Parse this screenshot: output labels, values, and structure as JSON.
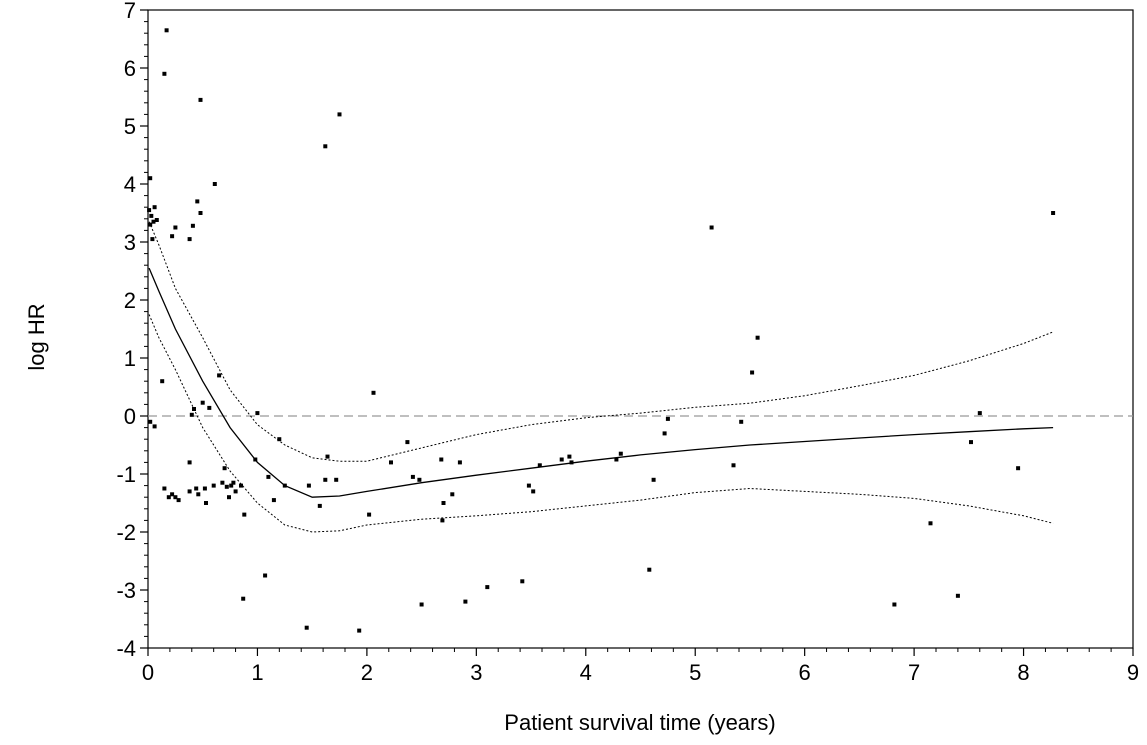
{
  "chart_data": {
    "type": "scatter",
    "title": "",
    "xlabel": "Patient survival time (years)",
    "ylabel": "log HR",
    "xlim": [
      0,
      9
    ],
    "ylim": [
      -4,
      7
    ],
    "xticks": [
      "0",
      "1",
      "2",
      "3",
      "4",
      "5",
      "6",
      "7",
      "8",
      "9"
    ],
    "yticks": [
      "-4",
      "-3",
      "-2",
      "-1",
      "0",
      "1",
      "2",
      "3",
      "4",
      "5",
      "6",
      "7"
    ],
    "grid": false,
    "reference_line": {
      "y": 0,
      "style": "dashed",
      "color": "#999999"
    },
    "points": [
      [
        0.02,
        4.1
      ],
      [
        0.01,
        3.55
      ],
      [
        0.03,
        3.45
      ],
      [
        0.02,
        3.3
      ],
      [
        0.05,
        3.35
      ],
      [
        0.06,
        3.6
      ],
      [
        0.08,
        3.38
      ],
      [
        0.04,
        3.05
      ],
      [
        0.17,
        6.65
      ],
      [
        0.15,
        5.9
      ],
      [
        0.22,
        3.1
      ],
      [
        0.25,
        3.25
      ],
      [
        0.38,
        3.05
      ],
      [
        0.41,
        3.28
      ],
      [
        0.45,
        3.7
      ],
      [
        0.48,
        3.5
      ],
      [
        0.48,
        5.45
      ],
      [
        0.61,
        4.0
      ],
      [
        1.62,
        4.65
      ],
      [
        1.75,
        5.2
      ],
      [
        5.15,
        3.25
      ],
      [
        8.27,
        3.5
      ],
      [
        0.02,
        -0.1
      ],
      [
        0.06,
        -0.18
      ],
      [
        0.13,
        0.6
      ],
      [
        0.15,
        -1.25
      ],
      [
        0.19,
        -1.4
      ],
      [
        0.22,
        -1.35
      ],
      [
        0.25,
        -1.4
      ],
      [
        0.28,
        -1.45
      ],
      [
        0.38,
        -1.3
      ],
      [
        0.38,
        -0.8
      ],
      [
        0.4,
        0.02
      ],
      [
        0.42,
        0.12
      ],
      [
        0.44,
        -1.25
      ],
      [
        0.46,
        -1.35
      ],
      [
        0.5,
        0.23
      ],
      [
        0.52,
        -1.25
      ],
      [
        0.53,
        -1.5
      ],
      [
        0.56,
        0.14
      ],
      [
        0.6,
        -1.2
      ],
      [
        0.65,
        0.7
      ],
      [
        0.68,
        -1.15
      ],
      [
        0.7,
        -0.9
      ],
      [
        0.72,
        -1.22
      ],
      [
        0.74,
        -1.4
      ],
      [
        0.76,
        -1.2
      ],
      [
        0.78,
        -1.15
      ],
      [
        0.8,
        -1.3
      ],
      [
        0.85,
        -1.2
      ],
      [
        0.88,
        -1.7
      ],
      [
        0.87,
        -3.15
      ],
      [
        0.98,
        -0.75
      ],
      [
        1.0,
        0.05
      ],
      [
        1.07,
        -2.75
      ],
      [
        1.1,
        -1.05
      ],
      [
        1.15,
        -1.45
      ],
      [
        1.2,
        -0.4
      ],
      [
        1.25,
        -1.2
      ],
      [
        1.45,
        -3.65
      ],
      [
        1.47,
        -1.2
      ],
      [
        1.57,
        -1.55
      ],
      [
        1.62,
        -1.1
      ],
      [
        1.64,
        -0.7
      ],
      [
        1.72,
        -1.1
      ],
      [
        1.93,
        -3.7
      ],
      [
        2.02,
        -1.7
      ],
      [
        2.06,
        0.4
      ],
      [
        2.22,
        -0.8
      ],
      [
        2.37,
        -0.45
      ],
      [
        2.42,
        -1.05
      ],
      [
        2.48,
        -1.1
      ],
      [
        2.5,
        -3.25
      ],
      [
        2.68,
        -0.75
      ],
      [
        2.7,
        -1.5
      ],
      [
        2.69,
        -1.8
      ],
      [
        2.78,
        -1.35
      ],
      [
        2.85,
        -0.8
      ],
      [
        2.9,
        -3.2
      ],
      [
        3.1,
        -2.95
      ],
      [
        3.42,
        -2.85
      ],
      [
        3.48,
        -1.2
      ],
      [
        3.52,
        -1.3
      ],
      [
        3.58,
        -0.85
      ],
      [
        3.78,
        -0.75
      ],
      [
        3.85,
        -0.7
      ],
      [
        3.87,
        -0.8
      ],
      [
        4.28,
        -0.75
      ],
      [
        4.32,
        -0.65
      ],
      [
        4.58,
        -2.65
      ],
      [
        4.62,
        -1.1
      ],
      [
        4.72,
        -0.3
      ],
      [
        4.75,
        -0.05
      ],
      [
        5.35,
        -0.85
      ],
      [
        5.42,
        -0.1
      ],
      [
        5.52,
        0.75
      ],
      [
        5.57,
        1.35
      ],
      [
        6.82,
        -3.25
      ],
      [
        7.15,
        -1.85
      ],
      [
        7.4,
        -3.1
      ],
      [
        7.52,
        -0.45
      ],
      [
        7.6,
        0.05
      ],
      [
        7.95,
        -0.9
      ]
    ],
    "series": [
      {
        "values": [
          [
            0.01,
            2.55
          ],
          [
            0.1,
            2.15
          ],
          [
            0.25,
            1.5
          ],
          [
            0.5,
            0.6
          ],
          [
            0.75,
            -0.2
          ],
          [
            1.0,
            -0.8
          ],
          [
            1.25,
            -1.2
          ],
          [
            1.5,
            -1.4
          ],
          [
            1.75,
            -1.38
          ],
          [
            2.0,
            -1.3
          ],
          [
            2.5,
            -1.15
          ],
          [
            3.0,
            -1.02
          ],
          [
            3.5,
            -0.9
          ],
          [
            4.0,
            -0.78
          ],
          [
            4.5,
            -0.67
          ],
          [
            5.0,
            -0.58
          ],
          [
            5.5,
            -0.5
          ],
          [
            6.0,
            -0.44
          ],
          [
            6.5,
            -0.38
          ],
          [
            7.0,
            -0.32
          ],
          [
            7.5,
            -0.27
          ],
          [
            8.0,
            -0.22
          ],
          [
            8.27,
            -0.2
          ]
        ],
        "style": "solid"
      },
      {
        "values": [
          [
            0.01,
            3.35
          ],
          [
            0.1,
            2.95
          ],
          [
            0.25,
            2.2
          ],
          [
            0.5,
            1.35
          ],
          [
            0.75,
            0.45
          ],
          [
            1.0,
            -0.15
          ],
          [
            1.25,
            -0.5
          ],
          [
            1.5,
            -0.72
          ],
          [
            1.75,
            -0.78
          ],
          [
            2.0,
            -0.78
          ],
          [
            2.5,
            -0.55
          ],
          [
            3.0,
            -0.32
          ],
          [
            3.5,
            -0.15
          ],
          [
            4.0,
            -0.03
          ],
          [
            4.5,
            0.05
          ],
          [
            5.0,
            0.15
          ],
          [
            5.5,
            0.22
          ],
          [
            6.0,
            0.35
          ],
          [
            6.5,
            0.52
          ],
          [
            7.0,
            0.7
          ],
          [
            7.5,
            0.95
          ],
          [
            8.0,
            1.25
          ],
          [
            8.27,
            1.45
          ]
        ],
        "style": "dotted"
      },
      {
        "values": [
          [
            0.01,
            1.75
          ],
          [
            0.1,
            1.35
          ],
          [
            0.25,
            0.8
          ],
          [
            0.5,
            -0.2
          ],
          [
            0.75,
            -0.95
          ],
          [
            1.0,
            -1.5
          ],
          [
            1.25,
            -1.88
          ],
          [
            1.5,
            -2.0
          ],
          [
            1.75,
            -1.98
          ],
          [
            2.0,
            -1.88
          ],
          [
            2.5,
            -1.78
          ],
          [
            3.0,
            -1.72
          ],
          [
            3.5,
            -1.65
          ],
          [
            4.0,
            -1.55
          ],
          [
            4.5,
            -1.45
          ],
          [
            5.0,
            -1.32
          ],
          [
            5.5,
            -1.25
          ],
          [
            6.0,
            -1.3
          ],
          [
            6.5,
            -1.35
          ],
          [
            7.0,
            -1.42
          ],
          [
            7.5,
            -1.55
          ],
          [
            8.0,
            -1.72
          ],
          [
            8.27,
            -1.85
          ]
        ],
        "style": "dotted"
      }
    ]
  }
}
